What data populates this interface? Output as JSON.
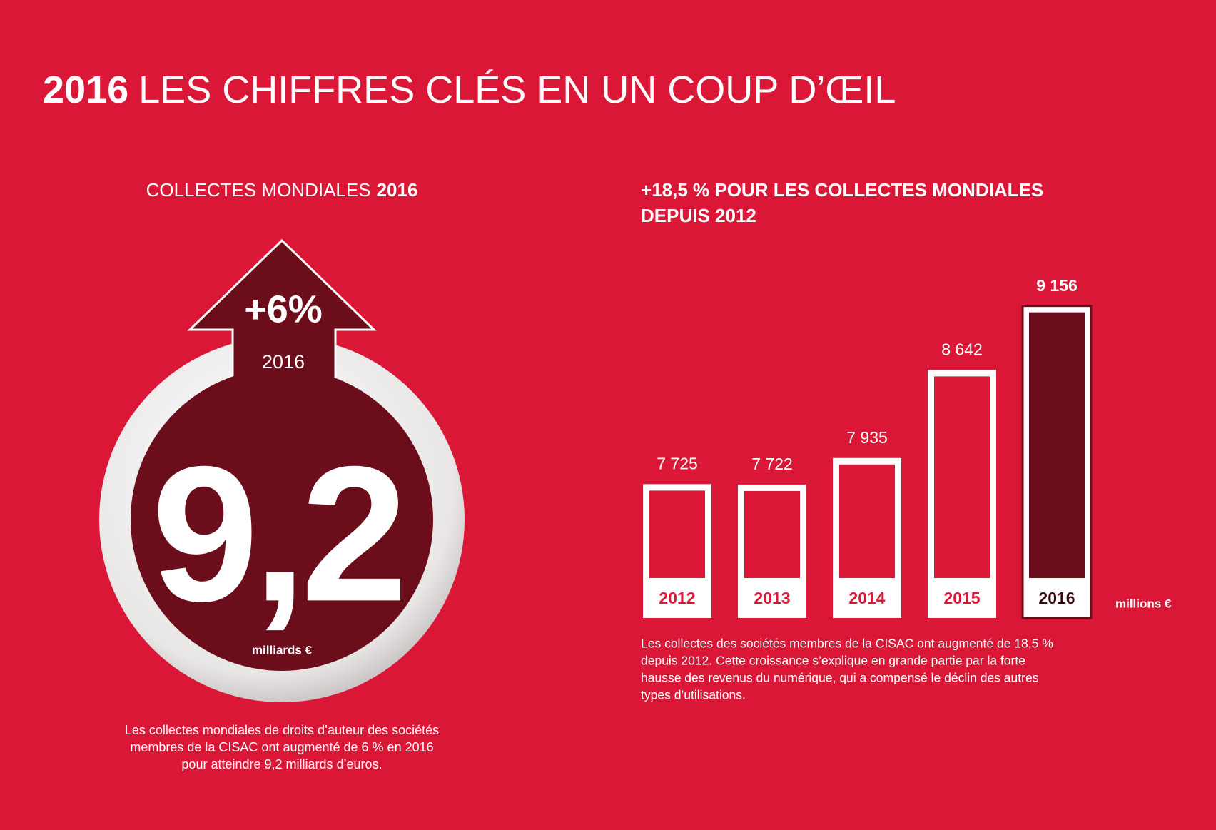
{
  "header": {
    "title_bold": "2016",
    "title_rest": "LES CHIFFRES CLÉS EN UN COUP D’ŒIL"
  },
  "left_panel": {
    "heading": "COLLECTES MONDIALES",
    "heading_bold": "2016",
    "growth": "+6%",
    "growth_year": "2016",
    "big_value": "9,2",
    "big_unit": "milliards €",
    "caption": [
      "Les collectes mondiales de droits d’auteur des sociétés",
      "membres de la CISAC ont augmenté de 6 % en 2016",
      "pour atteindre 9,2 milliards d’euros."
    ]
  },
  "chart_data": {
    "type": "bar",
    "title": [
      "+18,5 % POUR LES COLLECTES MONDIALES",
      "DEPUIS 2012"
    ],
    "categories": [
      "2012",
      "2013",
      "2014",
      "2015",
      "2016"
    ],
    "values": [
      7725,
      7722,
      7935,
      8642,
      9156
    ],
    "value_labels": [
      "7 725",
      "7 722",
      "7 935",
      "8 642",
      "9 156"
    ],
    "colors": [
      "#db1737",
      "#db1737",
      "#db1737",
      "#db1737",
      "#6b0d1a"
    ],
    "ylim": [
      6650,
      9200
    ],
    "unit_label": "millions €",
    "note": [
      "Les collectes des sociétés membres de la CISAC ont augmenté de 18,5 %",
      "depuis 2012. Cette croissance s’explique en grande partie par la forte",
      "hausse des revenus du numérique, qui a compensé le déclin des autres",
      "types d’utilisations."
    ]
  }
}
